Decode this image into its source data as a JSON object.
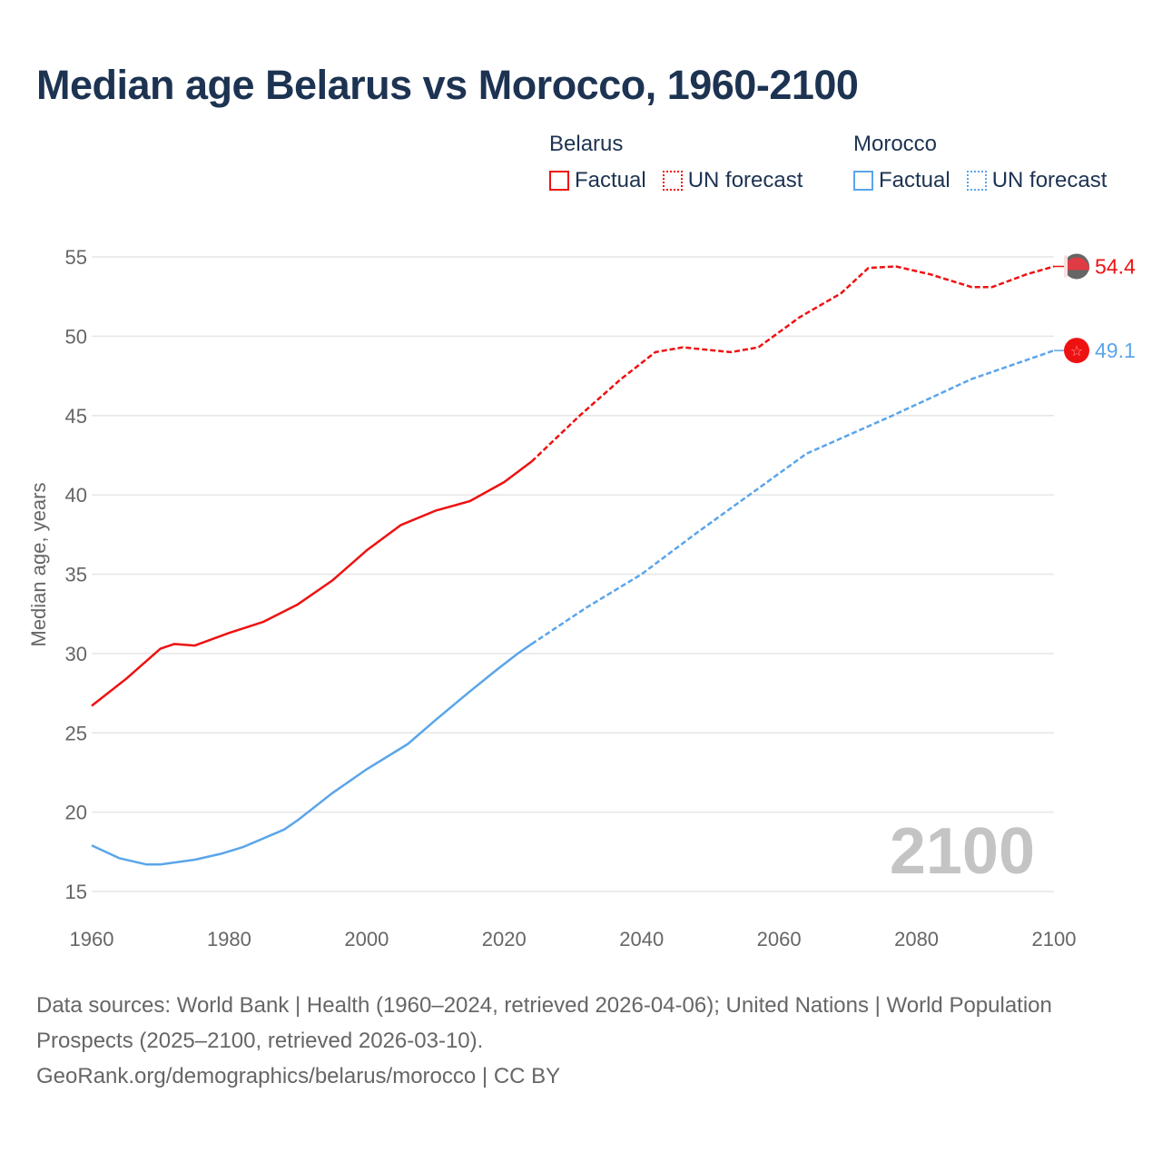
{
  "title": "Median age Belarus vs Morocco, 1960-2100",
  "legend": {
    "groups": [
      {
        "name": "Belarus",
        "color": "#ee1111",
        "factual": "Factual",
        "forecast": "UN forecast"
      },
      {
        "name": "Morocco",
        "color": "#5aa5ea",
        "factual": "Factual",
        "forecast": "UN forecast"
      }
    ]
  },
  "year_watermark": "2100",
  "footer": {
    "sources": "Data sources: World Bank | Health (1960–2024, retrieved 2026-04-06); United Nations | World Population Prospects (2025–2100, retrieved 2026-03-10).",
    "site": "GeoRank.org/demographics/belarus/morocco | CC BY"
  },
  "chart_data": {
    "type": "line",
    "title": "Median age Belarus vs Morocco, 1960-2100",
    "xlabel": "",
    "ylabel": "Median age, years",
    "xlim": [
      1960,
      2100
    ],
    "ylim": [
      15,
      55
    ],
    "xticks": [
      1960,
      1980,
      2000,
      2020,
      2040,
      2060,
      2080,
      2100
    ],
    "yticks": [
      15,
      20,
      25,
      30,
      35,
      40,
      45,
      50,
      55
    ],
    "grid": "horizontal",
    "legend_position": "top-right",
    "series": [
      {
        "name": "Belarus",
        "segment": "Factual",
        "color": "#ee1111",
        "style": "solid",
        "x": [
          1960,
          1965,
          1970,
          1972,
          1975,
          1980,
          1985,
          1990,
          1995,
          2000,
          2005,
          2010,
          2015,
          2020,
          2024
        ],
        "y": [
          26.7,
          28.4,
          30.3,
          30.6,
          30.5,
          31.3,
          32.0,
          33.1,
          34.6,
          36.5,
          38.1,
          39.0,
          39.6,
          40.8,
          42.1
        ]
      },
      {
        "name": "Belarus",
        "segment": "UN forecast",
        "color": "#ee1111",
        "style": "dashed",
        "x": [
          2024,
          2031,
          2037,
          2042,
          2046,
          2053,
          2057,
          2063,
          2069,
          2073,
          2077,
          2082,
          2088,
          2091,
          2096,
          2100
        ],
        "y": [
          42.1,
          45.0,
          47.3,
          49.0,
          49.3,
          49.0,
          49.3,
          51.2,
          52.7,
          54.3,
          54.4,
          53.9,
          53.1,
          53.1,
          53.9,
          54.4
        ]
      },
      {
        "name": "Morocco",
        "segment": "Factual",
        "color": "#5aa5ea",
        "style": "solid",
        "x": [
          1960,
          1964,
          1968,
          1970,
          1975,
          1979,
          1982,
          1988,
          1990,
          1995,
          2000,
          2006,
          2010,
          2015,
          2019,
          2022,
          2024
        ],
        "y": [
          17.9,
          17.1,
          16.7,
          16.7,
          17.0,
          17.4,
          17.8,
          18.9,
          19.5,
          21.2,
          22.7,
          24.3,
          25.8,
          27.6,
          29.0,
          30.0,
          30.6
        ]
      },
      {
        "name": "Morocco",
        "segment": "UN forecast",
        "color": "#5aa5ea",
        "style": "dashed",
        "x": [
          2024,
          2032,
          2040,
          2048,
          2056,
          2064,
          2076,
          2088,
          2100
        ],
        "y": [
          30.6,
          32.9,
          35.0,
          37.6,
          40.1,
          42.6,
          44.9,
          47.3,
          49.1
        ]
      }
    ],
    "end_labels": [
      {
        "series": "Belarus",
        "value": "54.4",
        "y": 54.4,
        "color": "#ee1111"
      },
      {
        "series": "Morocco",
        "value": "49.1",
        "y": 49.1,
        "color": "#5aa5ea"
      }
    ]
  }
}
